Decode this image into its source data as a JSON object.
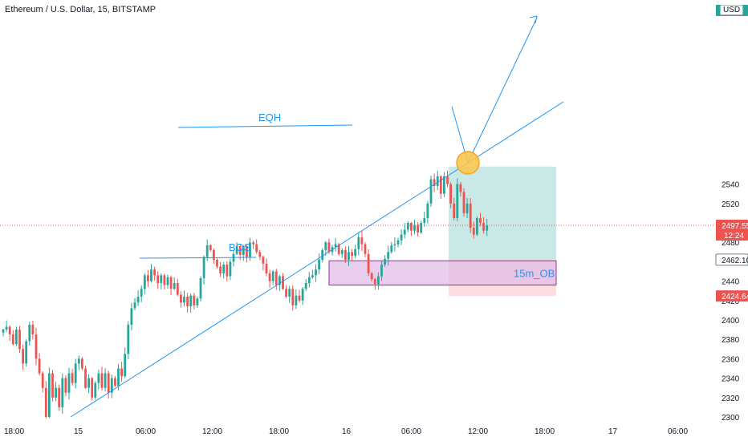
{
  "header": {
    "title": "Ethereum / U.S. Dollar, 15, BITSTAMP",
    "currency": "USD"
  },
  "colors": {
    "up": "#26a69a",
    "down": "#ef5350",
    "annotation": "#2196f3",
    "ob_border": "#9c27b0",
    "ob_fill": "#e1bee7",
    "target_fill": "#b2dfdb",
    "stop_fill": "#ffcdd2",
    "current_price": "#ef5350",
    "marker_fill": "#f9c74f",
    "marker_stroke": "#f5a623"
  },
  "chart_data": {
    "type": "candlestick",
    "title": "Ethereum / U.S. Dollar, 15, BITSTAMP",
    "y_ticks": [
      2300,
      2320,
      2340,
      2360,
      2380,
      2400,
      2420,
      2440,
      2460,
      2480,
      2500,
      2520,
      2540
    ],
    "ylim": [
      2297,
      2560
    ],
    "x_tick_labels": [
      "18:00",
      "15",
      "06:00",
      "12:00",
      "18:00",
      "16",
      "06:00",
      "12:00",
      "18:00",
      "17",
      "06:00"
    ],
    "price_scale_tags": [
      {
        "value": 2497.55,
        "label": "2497.55",
        "sub": "12:24",
        "kind": "current"
      },
      {
        "value": 2462.1,
        "label": "2462.10",
        "kind": "neutral"
      },
      {
        "value": 2424.64,
        "label": "2424.64",
        "kind": "stop"
      },
      {
        "value": 2558,
        "label": "2558",
        "kind": "target"
      }
    ],
    "candles_close": [
      2390,
      2393,
      2385,
      2375,
      2390,
      2370,
      2355,
      2378,
      2395,
      2385,
      2360,
      2345,
      2330,
      2300,
      2345,
      2320,
      2330,
      2310,
      2340,
      2325,
      2345,
      2335,
      2355,
      2360,
      2350,
      2330,
      2340,
      2320,
      2335,
      2345,
      2330,
      2345,
      2325,
      2340,
      2332,
      2350,
      2342,
      2365,
      2395,
      2412,
      2418,
      2424,
      2432,
      2446,
      2440,
      2452,
      2446,
      2438,
      2446,
      2436,
      2444,
      2432,
      2438,
      2426,
      2418,
      2424,
      2414,
      2425,
      2415,
      2422,
      2443,
      2465,
      2477,
      2472,
      2462,
      2455,
      2448,
      2457,
      2445,
      2460,
      2468,
      2476,
      2467,
      2476,
      2465,
      2480,
      2478,
      2470,
      2465,
      2458,
      2448,
      2440,
      2450,
      2436,
      2445,
      2432,
      2424,
      2432,
      2415,
      2425,
      2420,
      2432,
      2438,
      2444,
      2446,
      2452,
      2462,
      2472,
      2480,
      2470,
      2475,
      2478,
      2468,
      2472,
      2462,
      2470,
      2466,
      2473,
      2485,
      2478,
      2468,
      2448,
      2442,
      2437,
      2445,
      2457,
      2463,
      2470,
      2477,
      2478,
      2482,
      2488,
      2493,
      2500,
      2492,
      2498,
      2490,
      2500,
      2505,
      2520,
      2545,
      2538,
      2548,
      2530,
      2548,
      2540,
      2520,
      2505,
      2540,
      2532,
      2510,
      2520,
      2495,
      2488,
      2505,
      2500,
      2492,
      2497.55
    ],
    "annotations": [
      {
        "type": "text",
        "text": "EQH"
      },
      {
        "type": "text",
        "text": "BOS"
      },
      {
        "type": "zone",
        "text": "15m_OB",
        "from": 2436,
        "to": 2461
      },
      {
        "type": "long_position",
        "entry": 2462.1,
        "stop": 2424.64,
        "target": 2558
      }
    ]
  }
}
